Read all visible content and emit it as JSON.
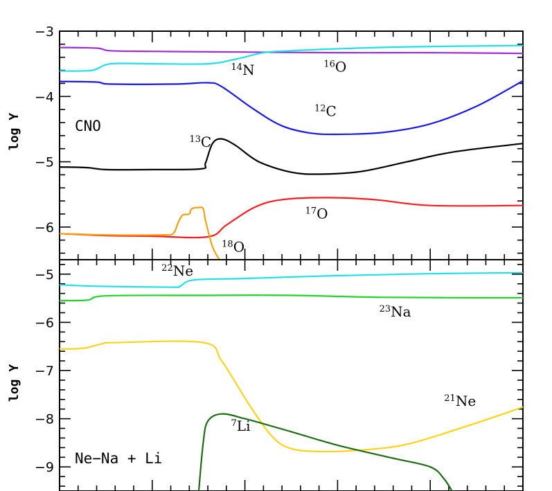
{
  "chart_data": [
    {
      "type": "line",
      "panel": "top",
      "title": "CNO",
      "ylabel": "log Y",
      "xlabel": "",
      "ylim": [
        -6.5,
        -3
      ],
      "xlim": [
        0,
        1
      ],
      "yticks": [
        -3,
        -4,
        -5,
        -6
      ],
      "ytick_labels": [
        "−3",
        "−4",
        "−5",
        "−6"
      ],
      "grid": false,
      "series": [
        {
          "label_mass": "16",
          "label_el": "O",
          "color": "#9b30d0",
          "label_pos": [
            0.57,
            -3.62
          ],
          "points": [
            [
              0,
              -3.25
            ],
            [
              0.08,
              -3.26
            ],
            [
              0.11,
              -3.3
            ],
            [
              0.2,
              -3.31
            ],
            [
              0.4,
              -3.32
            ],
            [
              0.6,
              -3.33
            ],
            [
              0.8,
              -3.33
            ],
            [
              1,
              -3.34
            ]
          ]
        },
        {
          "label_mass": "14",
          "label_el": "N",
          "color": "#1fe0e8",
          "label_pos": [
            0.37,
            -3.67
          ],
          "points": [
            [
              0,
              -3.61
            ],
            [
              0.07,
              -3.6
            ],
            [
              0.11,
              -3.5
            ],
            [
              0.2,
              -3.5
            ],
            [
              0.32,
              -3.5
            ],
            [
              0.38,
              -3.43
            ],
            [
              0.44,
              -3.33
            ],
            [
              0.5,
              -3.3
            ],
            [
              0.6,
              -3.27
            ],
            [
              0.75,
              -3.24
            ],
            [
              1,
              -3.22
            ]
          ]
        },
        {
          "label_mass": "12",
          "label_el": "C",
          "color": "#1818e6",
          "label_pos": [
            0.55,
            -4.3
          ],
          "points": [
            [
              0,
              -3.77
            ],
            [
              0.08,
              -3.78
            ],
            [
              0.11,
              -3.81
            ],
            [
              0.25,
              -3.81
            ],
            [
              0.32,
              -3.79
            ],
            [
              0.35,
              -3.85
            ],
            [
              0.42,
              -4.2
            ],
            [
              0.48,
              -4.45
            ],
            [
              0.54,
              -4.56
            ],
            [
              0.6,
              -4.58
            ],
            [
              0.7,
              -4.55
            ],
            [
              0.8,
              -4.42
            ],
            [
              0.9,
              -4.15
            ],
            [
              1,
              -3.76
            ]
          ]
        },
        {
          "label_mass": "13",
          "label_el": "C",
          "color": "#000000",
          "label_pos": [
            0.28,
            -4.77
          ],
          "points": [
            [
              0,
              -5.08
            ],
            [
              0.06,
              -5.09
            ],
            [
              0.1,
              -5.12
            ],
            [
              0.2,
              -5.12
            ],
            [
              0.305,
              -5.11
            ],
            [
              0.315,
              -5.02
            ],
            [
              0.33,
              -4.72
            ],
            [
              0.35,
              -4.65
            ],
            [
              0.38,
              -4.75
            ],
            [
              0.43,
              -5.0
            ],
            [
              0.5,
              -5.16
            ],
            [
              0.56,
              -5.19
            ],
            [
              0.65,
              -5.15
            ],
            [
              0.75,
              -5.0
            ],
            [
              0.85,
              -4.85
            ],
            [
              1,
              -4.72
            ]
          ]
        },
        {
          "label_mass": "17",
          "label_el": "O",
          "color": "#ff1a1a",
          "label_pos": [
            0.53,
            -5.87
          ],
          "points": [
            [
              0,
              -6.1
            ],
            [
              0.1,
              -6.13
            ],
            [
              0.2,
              -6.14
            ],
            [
              0.32,
              -6.15
            ],
            [
              0.36,
              -5.97
            ],
            [
              0.42,
              -5.7
            ],
            [
              0.48,
              -5.58
            ],
            [
              0.58,
              -5.55
            ],
            [
              0.68,
              -5.58
            ],
            [
              0.8,
              -5.67
            ],
            [
              1,
              -5.67
            ]
          ]
        },
        {
          "label_mass": "18",
          "label_el": "O",
          "color": "#f5a00f",
          "label_pos": [
            0.35,
            -6.38
          ],
          "points": [
            [
              0,
              -6.1
            ],
            [
              0.1,
              -6.12
            ],
            [
              0.22,
              -6.12
            ],
            [
              0.245,
              -6.1
            ],
            [
              0.255,
              -5.95
            ],
            [
              0.265,
              -5.82
            ],
            [
              0.28,
              -5.8
            ],
            [
              0.285,
              -5.72
            ],
            [
              0.3,
              -5.7
            ],
            [
              0.31,
              -5.72
            ],
            [
              0.315,
              -5.9
            ],
            [
              0.33,
              -6.3
            ],
            [
              0.345,
              -6.5
            ]
          ]
        }
      ]
    },
    {
      "type": "line",
      "panel": "bottom",
      "title": "Ne−Na + Li",
      "ylabel": "log Y",
      "xlabel": "",
      "ylim": [
        -9.5,
        -4.7
      ],
      "xlim": [
        0,
        1
      ],
      "yticks": [
        -5,
        -6,
        -7,
        -8,
        -9
      ],
      "ytick_labels": [
        "−5",
        "−6",
        "−7",
        "−8",
        "−9"
      ],
      "grid": false,
      "series": [
        {
          "label_mass": "22",
          "label_el": "Ne",
          "color": "#1fe0e8",
          "label_pos": [
            0.22,
            -5.03
          ],
          "points": [
            [
              0,
              -5.22
            ],
            [
              0.08,
              -5.25
            ],
            [
              0.24,
              -5.27
            ],
            [
              0.26,
              -5.25
            ],
            [
              0.29,
              -5.12
            ],
            [
              0.4,
              -5.09
            ],
            [
              0.6,
              -5.03
            ],
            [
              0.8,
              -4.99
            ],
            [
              1,
              -4.97
            ]
          ]
        },
        {
          "label_mass": "23",
          "label_el": "Na",
          "color": "#22d32a",
          "label_pos": [
            0.69,
            -5.88
          ],
          "points": [
            [
              0,
              -5.55
            ],
            [
              0.06,
              -5.54
            ],
            [
              0.1,
              -5.45
            ],
            [
              0.3,
              -5.44
            ],
            [
              0.5,
              -5.44
            ],
            [
              0.7,
              -5.48
            ],
            [
              1,
              -5.49
            ]
          ]
        },
        {
          "label_mass": "21",
          "label_el": "Ne",
          "color": "#ffd21a",
          "label_pos": [
            0.83,
            -7.73
          ],
          "points": [
            [
              0,
              -6.55
            ],
            [
              0.05,
              -6.54
            ],
            [
              0.09,
              -6.45
            ],
            [
              0.12,
              -6.42
            ],
            [
              0.31,
              -6.42
            ],
            [
              0.35,
              -6.8
            ],
            [
              0.41,
              -7.72
            ],
            [
              0.46,
              -8.38
            ],
            [
              0.5,
              -8.62
            ],
            [
              0.56,
              -8.68
            ],
            [
              0.65,
              -8.65
            ],
            [
              0.75,
              -8.53
            ],
            [
              0.88,
              -8.15
            ],
            [
              1,
              -7.76
            ]
          ]
        },
        {
          "label_mass": "7",
          "label_el": "Li",
          "color": "#1d6b12",
          "label_pos": [
            0.37,
            -8.25
          ],
          "points": [
            [
              0.3,
              -9.55
            ],
            [
              0.31,
              -8.5
            ],
            [
              0.32,
              -8.05
            ],
            [
              0.35,
              -7.9
            ],
            [
              0.4,
              -8.0
            ],
            [
              0.5,
              -8.27
            ],
            [
              0.6,
              -8.55
            ],
            [
              0.72,
              -8.82
            ],
            [
              0.8,
              -9.0
            ],
            [
              0.83,
              -9.25
            ],
            [
              0.85,
              -9.55
            ]
          ]
        }
      ]
    }
  ]
}
